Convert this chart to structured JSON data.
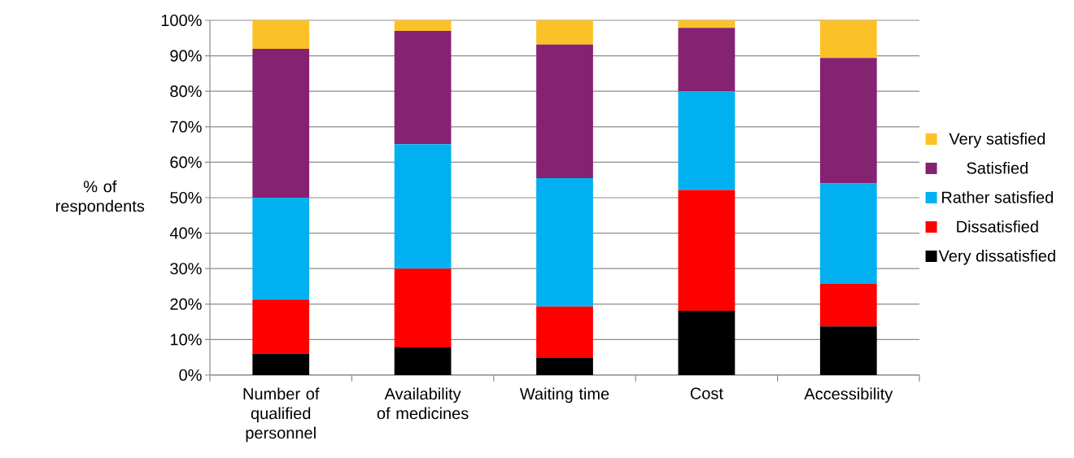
{
  "chart_data": {
    "type": "bar",
    "stacked": true,
    "ylabel": "% of respondents",
    "categories": [
      "Number of qualified personnel",
      "Availability of medicines",
      "Waiting time",
      "Cost",
      "Accessibility"
    ],
    "series": [
      {
        "name": "Very dissatisfied",
        "color": "#000000",
        "values": [
          6.0,
          7.8,
          4.8,
          18.1,
          13.7
        ]
      },
      {
        "name": "Dissatisfied",
        "color": "#ff0000",
        "values": [
          15.3,
          22.2,
          14.5,
          34.1,
          12.0
        ]
      },
      {
        "name": "Rather satisfied",
        "color": "#00b0f0",
        "values": [
          28.7,
          35.1,
          36.2,
          27.8,
          28.3
        ]
      },
      {
        "name": "Satisfied",
        "color": "#862272",
        "values": [
          42.0,
          31.9,
          37.7,
          17.9,
          35.4
        ]
      },
      {
        "name": "Very satisfied",
        "color": "#fdc128",
        "values": [
          8.0,
          3.0,
          6.8,
          2.1,
          10.6
        ]
      }
    ],
    "ylim": [
      0,
      100
    ],
    "yticks": [
      {
        "value": 0,
        "label": "0%"
      },
      {
        "value": 10,
        "label": "10%"
      },
      {
        "value": 20,
        "label": "20%"
      },
      {
        "value": 30,
        "label": "30%"
      },
      {
        "value": 40,
        "label": "40%"
      },
      {
        "value": 50,
        "label": "50%"
      },
      {
        "value": 60,
        "label": "60%"
      },
      {
        "value": 70,
        "label": "70%"
      },
      {
        "value": 80,
        "label": "80%"
      },
      {
        "value": 90,
        "label": "90%"
      },
      {
        "value": 100,
        "label": "100%"
      }
    ],
    "grid": "y",
    "legend": "right"
  }
}
